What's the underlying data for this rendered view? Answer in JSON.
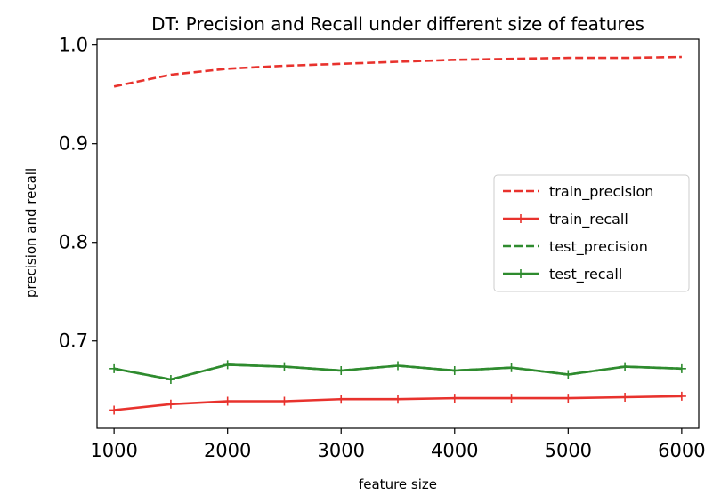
{
  "chart_data": {
    "type": "line",
    "title": "DT: Precision and Recall under different size of features",
    "xlabel": "feature size",
    "ylabel": "precision and recall",
    "xlim": [
      850,
      6150
    ],
    "ylim": [
      0.6115,
      1.006
    ],
    "xticks": [
      1000,
      2000,
      3000,
      4000,
      5000,
      6000
    ],
    "xtick_labels": [
      "1000",
      "2000",
      "3000",
      "4000",
      "5000",
      "6000"
    ],
    "yticks": [
      0.7,
      0.8,
      0.9,
      1.0
    ],
    "ytick_labels": [
      "0.7",
      "0.8",
      "0.9",
      "1.0"
    ],
    "grid": false,
    "legend_position": "center-right",
    "x": [
      1000,
      1500,
      2000,
      2500,
      3000,
      3500,
      4000,
      4500,
      5000,
      5500,
      6000
    ],
    "series": [
      {
        "name": "train_precision",
        "color": "#e8322d",
        "style": "dashed",
        "marker": "none",
        "values": [
          0.958,
          0.97,
          0.976,
          0.979,
          0.981,
          0.983,
          0.985,
          0.986,
          0.987,
          0.987,
          0.988
        ]
      },
      {
        "name": "train_recall",
        "color": "#e8322d",
        "style": "solid",
        "marker": "plus",
        "values": [
          0.63,
          0.636,
          0.639,
          0.639,
          0.641,
          0.641,
          0.642,
          0.642,
          0.642,
          0.643,
          0.644
        ]
      },
      {
        "name": "test_precision",
        "color": "#2e8b2e",
        "style": "dashed",
        "marker": "none",
        "values": [
          0.672,
          0.661,
          0.676,
          0.674,
          0.67,
          0.675,
          0.67,
          0.673,
          0.666,
          0.674,
          0.672
        ]
      },
      {
        "name": "test_recall",
        "color": "#2e8b2e",
        "style": "solid",
        "marker": "plus",
        "values": [
          0.672,
          0.661,
          0.676,
          0.674,
          0.67,
          0.675,
          0.67,
          0.673,
          0.666,
          0.674,
          0.672
        ]
      }
    ]
  }
}
